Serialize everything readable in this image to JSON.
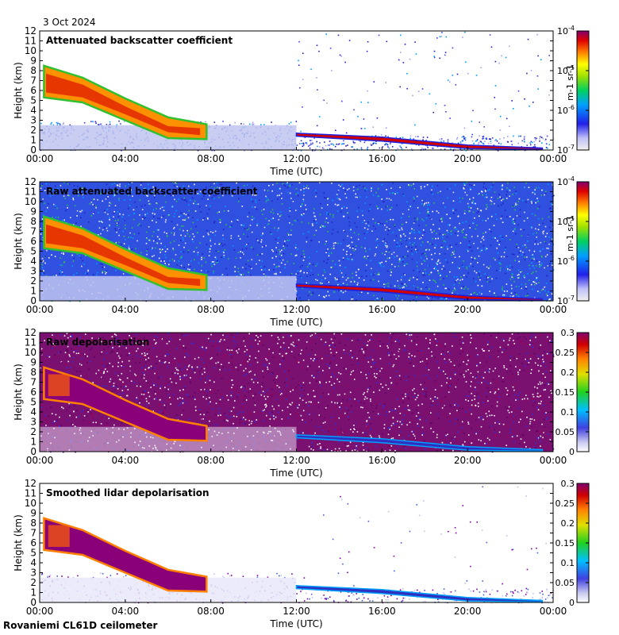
{
  "header": {
    "date": "3 Oct 2024"
  },
  "footer": {
    "site": "Rovaniemi CL61D ceilometer"
  },
  "chart_data": [
    {
      "type": "heatmap",
      "title": "Attenuated backscatter coefficient",
      "xlabel": "Time (UTC)",
      "ylabel": "Height (km)",
      "x_ticks": [
        "00:00",
        "04:00",
        "08:00",
        "12:00",
        "16:00",
        "20:00",
        "00:00"
      ],
      "y_ticks": [
        "0",
        "1",
        "2",
        "3",
        "4",
        "5",
        "6",
        "7",
        "8",
        "9",
        "10",
        "11",
        "12"
      ],
      "xlim": [
        0,
        24
      ],
      "ylim": [
        0,
        12
      ],
      "colorbar": {
        "scale": "log",
        "label": "m-1 sr-1",
        "ticks": [
          "10-7",
          "10-6",
          "10-5",
          "10-4"
        ]
      },
      "features": [
        {
          "name": "descending cloud layer",
          "start_hour": 0.2,
          "end_hour": 7.8,
          "top_km_start": 8.5,
          "base_km_start": 5.3,
          "top_km_end": 2.6,
          "base_km_end": 1.1
        },
        {
          "name": "low cloud layer",
          "start_hour": 12,
          "end_hour": 23.5,
          "height_km_start": 1.6,
          "height_km_end": 0.1
        },
        {
          "name": "boundary layer aerosol",
          "start_hour": 0,
          "end_hour": 12,
          "top_km": 2.5
        }
      ]
    },
    {
      "type": "heatmap",
      "title": "Raw attenuated backscatter coefficient",
      "xlabel": "Time (UTC)",
      "ylabel": "Height (km)",
      "x_ticks": [
        "00:00",
        "04:00",
        "08:00",
        "12:00",
        "16:00",
        "20:00",
        "00:00"
      ],
      "y_ticks": [
        "0",
        "1",
        "2",
        "3",
        "4",
        "5",
        "6",
        "7",
        "8",
        "9",
        "10",
        "11",
        "12"
      ],
      "xlim": [
        0,
        24
      ],
      "ylim": [
        0,
        12
      ],
      "colorbar": {
        "scale": "log",
        "label": "m-1 sr-1",
        "ticks": [
          "10-7",
          "10-6",
          "10-5",
          "10-4"
        ]
      }
    },
    {
      "type": "heatmap",
      "title": "Raw depolarisation",
      "xlabel": "Time (UTC)",
      "ylabel": "Height (km)",
      "x_ticks": [
        "00:00",
        "04:00",
        "08:00",
        "12:00",
        "16:00",
        "20:00",
        "00:00"
      ],
      "y_ticks": [
        "0",
        "1",
        "2",
        "3",
        "4",
        "5",
        "6",
        "7",
        "8",
        "9",
        "10",
        "11",
        "12"
      ],
      "xlim": [
        0,
        24
      ],
      "ylim": [
        0,
        12
      ],
      "colorbar": {
        "scale": "linear",
        "range": [
          0,
          0.3
        ],
        "ticks": [
          "0",
          "0.05",
          "0.1",
          "0.15",
          "0.2",
          "0.25",
          "0.3"
        ]
      }
    },
    {
      "type": "heatmap",
      "title": "Smoothed lidar depolarisation",
      "xlabel": "Time (UTC)",
      "ylabel": "Height (km)",
      "x_ticks": [
        "00:00",
        "04:00",
        "08:00",
        "12:00",
        "16:00",
        "20:00",
        "00:00"
      ],
      "y_ticks": [
        "0",
        "1",
        "2",
        "3",
        "4",
        "5",
        "6",
        "7",
        "8",
        "9",
        "10",
        "11",
        "12"
      ],
      "xlim": [
        0,
        24
      ],
      "ylim": [
        0,
        12
      ],
      "colorbar": {
        "scale": "linear",
        "range": [
          0,
          0.3
        ],
        "ticks": [
          "0",
          "0.05",
          "0.1",
          "0.15",
          "0.2",
          "0.25",
          "0.3"
        ]
      }
    }
  ]
}
